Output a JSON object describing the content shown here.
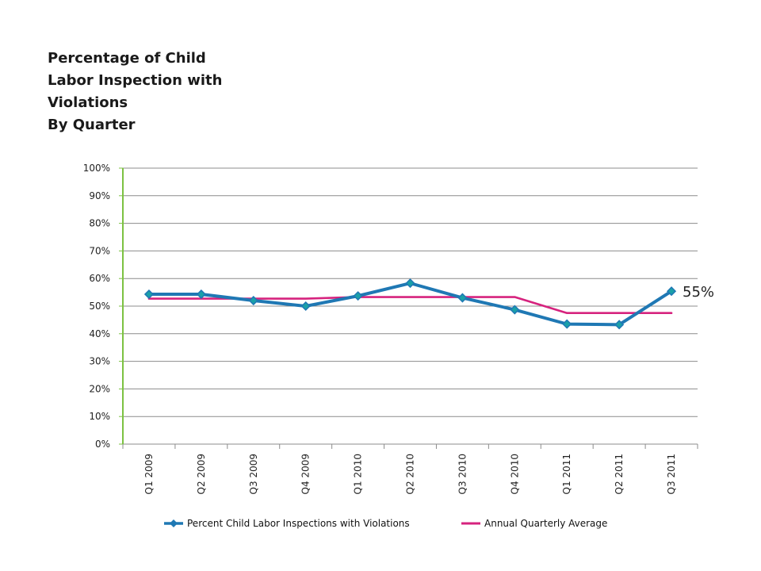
{
  "title_lines": [
    "Percentage of Child",
    "Labor Inspection with",
    "Violations",
    "By Quarter"
  ],
  "chart_data": {
    "type": "line",
    "categories": [
      "Q1 2009",
      "Q2 2009",
      "Q3 2009",
      "Q4 2009",
      "Q1 2010",
      "Q2 2010",
      "Q3 2010",
      "Q4 2010",
      "Q1 2011",
      "Q2 2011",
      "Q3 2011"
    ],
    "ylim": [
      0,
      100
    ],
    "yticks": [
      "0%",
      "10%",
      "20%",
      "30%",
      "40%",
      "50%",
      "60%",
      "70%",
      "80%",
      "90%",
      "100%"
    ],
    "grid": true,
    "legend_position": "bottom",
    "series": [
      {
        "name": "Percent Child Labor Inspections with Violations",
        "color": "#1f78b4",
        "marker": "diamond",
        "values": [
          54.3,
          54.3,
          52,
          50,
          53.7,
          58.3,
          53,
          48.7,
          43.5,
          43.3,
          55.4
        ]
      },
      {
        "name": "Annual Quarterly Average",
        "color": "#d6237e",
        "marker": "none",
        "values": [
          52.7,
          52.7,
          52.7,
          52.7,
          53.3,
          53.3,
          53.3,
          53.3,
          47.5,
          47.5,
          47.5
        ]
      }
    ],
    "annotation": {
      "text": "55%",
      "series": 0,
      "index": 10
    }
  }
}
